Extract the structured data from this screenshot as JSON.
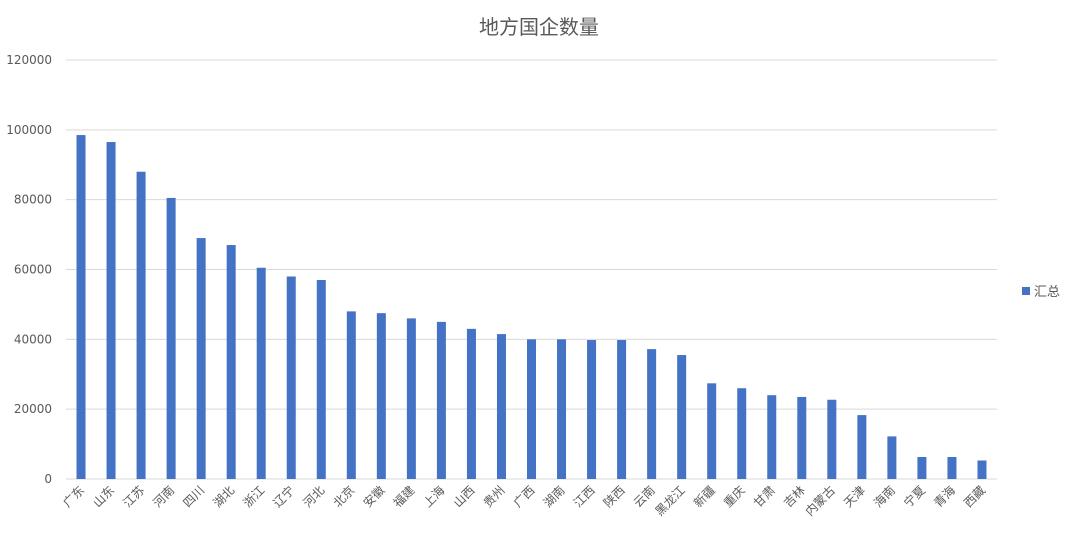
{
  "chart_data": {
    "type": "bar",
    "title": "地方国企数量",
    "xlabel": "",
    "ylabel": "",
    "ylim": [
      0,
      120000
    ],
    "yticks": [
      "0",
      "20000",
      "40000",
      "60000",
      "80000",
      "100000",
      "120000"
    ],
    "grid": true,
    "legend_position": "right",
    "bar_color": "#4472C4",
    "categories": [
      "广东",
      "山东",
      "江苏",
      "河南",
      "四川",
      "湖北",
      "浙江",
      "辽宁",
      "河北",
      "北京",
      "安徽",
      "福建",
      "上海",
      "山西",
      "贵州",
      "广西",
      "湖南",
      "江西",
      "陕西",
      "云南",
      "黑龙江",
      "新疆",
      "重庆",
      "甘肃",
      "吉林",
      "内蒙古",
      "天津",
      "海南",
      "宁夏",
      "青海",
      "西藏"
    ],
    "series": [
      {
        "name": "汇总",
        "values": [
          98500,
          96500,
          88000,
          80500,
          69000,
          67000,
          60500,
          58000,
          57000,
          48000,
          47500,
          46000,
          45000,
          43000,
          41500,
          40000,
          40000,
          39800,
          39800,
          37200,
          35500,
          27400,
          26000,
          24000,
          23500,
          22700,
          18300,
          12200,
          6300,
          6300,
          5300
        ]
      }
    ]
  }
}
